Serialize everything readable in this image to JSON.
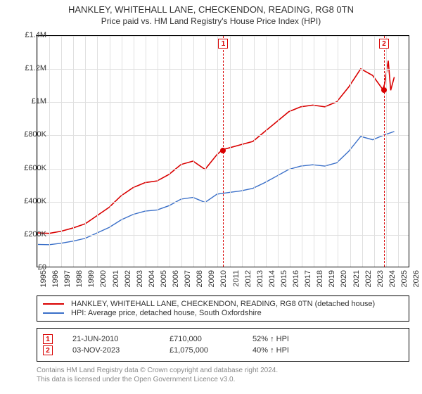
{
  "title_main": "HANKLEY, WHITEHALL LANE, CHECKENDON, READING, RG8 0TN",
  "title_sub": "Price paid vs. HM Land Registry's House Price Index (HPI)",
  "title_fontsize_main": 13,
  "title_fontsize_sub": 12,
  "background_color": "#ffffff",
  "grid_color": "#e0e0e0",
  "axis_color": "#000000",
  "chart": {
    "type": "line",
    "x_min": 1995,
    "x_max": 2026,
    "x_tick_step": 1,
    "y_min": 0,
    "y_max": 1400000,
    "y_tick_step": 200000,
    "y_tick_labels": [
      "£0",
      "£200K",
      "£400K",
      "£600K",
      "£800K",
      "£1M",
      "£1.2M",
      "£1.4M"
    ],
    "x_tick_fontsize": 11,
    "y_tick_fontsize": 11,
    "series": [
      {
        "name": "property_indexed",
        "label": "HANKLEY, WHITEHALL LANE, CHECKENDON, READING, RG8 0TN (detached house)",
        "color": "#d90000",
        "line_width": 1.6,
        "points": [
          [
            1995,
            205000
          ],
          [
            1996,
            202000
          ],
          [
            1997,
            215000
          ],
          [
            1998,
            235000
          ],
          [
            1999,
            260000
          ],
          [
            2000,
            310000
          ],
          [
            2001,
            360000
          ],
          [
            2002,
            430000
          ],
          [
            2003,
            480000
          ],
          [
            2004,
            510000
          ],
          [
            2005,
            520000
          ],
          [
            2006,
            560000
          ],
          [
            2007,
            620000
          ],
          [
            2008,
            640000
          ],
          [
            2009,
            590000
          ],
          [
            2010,
            680000
          ],
          [
            2010.47,
            710000
          ],
          [
            2011,
            720000
          ],
          [
            2012,
            740000
          ],
          [
            2013,
            760000
          ],
          [
            2014,
            820000
          ],
          [
            2015,
            880000
          ],
          [
            2016,
            940000
          ],
          [
            2017,
            970000
          ],
          [
            2018,
            980000
          ],
          [
            2019,
            970000
          ],
          [
            2020,
            1000000
          ],
          [
            2021,
            1090000
          ],
          [
            2022,
            1200000
          ],
          [
            2023,
            1160000
          ],
          [
            2023.84,
            1075000
          ],
          [
            2024,
            1110000
          ],
          [
            2024.3,
            1250000
          ],
          [
            2024.5,
            1070000
          ],
          [
            2024.8,
            1150000
          ]
        ]
      },
      {
        "name": "hpi_area",
        "label": "HPI: Average price, detached house, South Oxfordshire",
        "color": "#3a6fc8",
        "line_width": 1.4,
        "points": [
          [
            1995,
            135000
          ],
          [
            1996,
            133000
          ],
          [
            1997,
            142000
          ],
          [
            1998,
            155000
          ],
          [
            1999,
            172000
          ],
          [
            2000,
            205000
          ],
          [
            2001,
            238000
          ],
          [
            2002,
            284000
          ],
          [
            2003,
            317000
          ],
          [
            2004,
            337000
          ],
          [
            2005,
            344000
          ],
          [
            2006,
            370000
          ],
          [
            2007,
            410000
          ],
          [
            2008,
            420000
          ],
          [
            2009,
            390000
          ],
          [
            2010,
            440000
          ],
          [
            2011,
            450000
          ],
          [
            2012,
            460000
          ],
          [
            2013,
            475000
          ],
          [
            2014,
            510000
          ],
          [
            2015,
            550000
          ],
          [
            2016,
            590000
          ],
          [
            2017,
            610000
          ],
          [
            2018,
            618000
          ],
          [
            2019,
            610000
          ],
          [
            2020,
            630000
          ],
          [
            2021,
            700000
          ],
          [
            2022,
            790000
          ],
          [
            2023,
            770000
          ],
          [
            2024,
            800000
          ],
          [
            2024.8,
            820000
          ]
        ]
      }
    ],
    "sale_markers": [
      {
        "id": "1",
        "x": 2010.47,
        "y": 710000,
        "date": "21-JUN-2010",
        "price": "£710,000",
        "delta": "52% ↑ HPI",
        "color": "#d90000"
      },
      {
        "id": "2",
        "x": 2023.84,
        "y": 1075000,
        "date": "03-NOV-2023",
        "price": "£1,075,000",
        "delta": "40% ↑ HPI",
        "color": "#d90000"
      }
    ]
  },
  "legend_border_color": "#000000",
  "footer_lines": [
    "Contains HM Land Registry data © Crown copyright and database right 2024.",
    "This data is licensed under the Open Government Licence v3.0."
  ],
  "footer_color": "#888888"
}
